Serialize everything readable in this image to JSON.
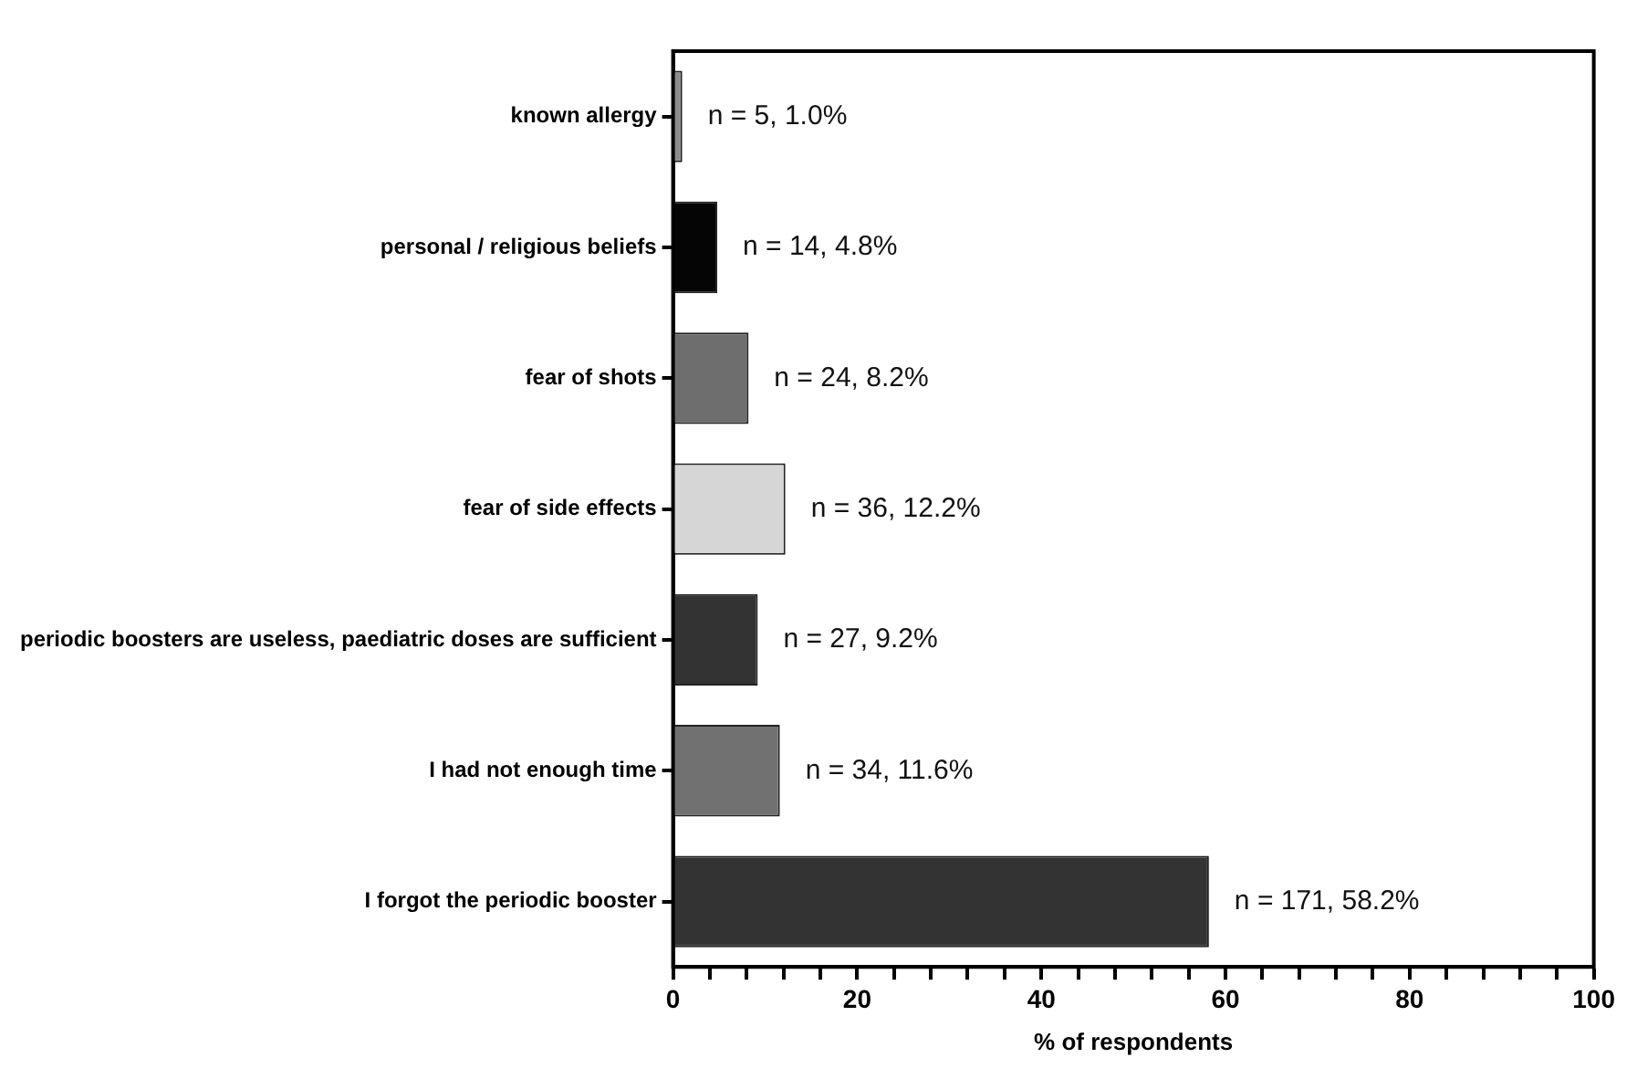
{
  "chart_data": {
    "type": "bar",
    "orientation": "horizontal",
    "xlabel": "% of respondents",
    "categories": [
      "known allergy",
      "personal / religious beliefs",
      "fear of shots",
      "fear of side effects",
      "periodic boosters are useless, paediatric doses are sufficient",
      "I had not enough time",
      "I forgot the periodic booster"
    ],
    "values": [
      1.0,
      4.8,
      8.2,
      12.2,
      9.2,
      11.6,
      58.2
    ],
    "colors": [
      "#8c8c8c",
      "#050505",
      "#6e6e6e",
      "#d6d6d6",
      "#333333",
      "#717171",
      "#333333"
    ],
    "value_labels": [
      "n = 5, 1.0%",
      "n = 14, 4.8%",
      "n = 24, 8.2%",
      "n = 36, 12.2%",
      "n = 27, 9.2%",
      "n = 34, 11.6%",
      "n = 171, 58.2%"
    ],
    "xlim": [
      0,
      100
    ],
    "xticks": [
      0,
      {
        "value": 4,
        "label": null
      },
      {
        "value": 8,
        "label": null
      },
      {
        "value": 12,
        "label": null
      },
      {
        "value": 16,
        "label": null
      },
      20,
      {
        "value": 24,
        "label": null
      },
      {
        "value": 28,
        "label": null
      },
      {
        "value": 32,
        "label": null
      },
      {
        "value": 36,
        "label": null
      },
      40,
      {
        "value": 44,
        "label": null
      },
      {
        "value": 48,
        "label": null
      },
      {
        "value": 52,
        "label": null
      },
      {
        "value": 56,
        "label": null
      },
      60,
      {
        "value": 64,
        "label": null
      },
      {
        "value": 68,
        "label": null
      },
      {
        "value": 72,
        "label": null
      },
      {
        "value": 76,
        "label": null
      },
      80,
      {
        "value": 84,
        "label": null
      },
      {
        "value": 88,
        "label": null
      },
      {
        "value": 92,
        "label": null
      },
      {
        "value": 96,
        "label": null
      },
      100
    ],
    "grid": false,
    "legend": false
  }
}
